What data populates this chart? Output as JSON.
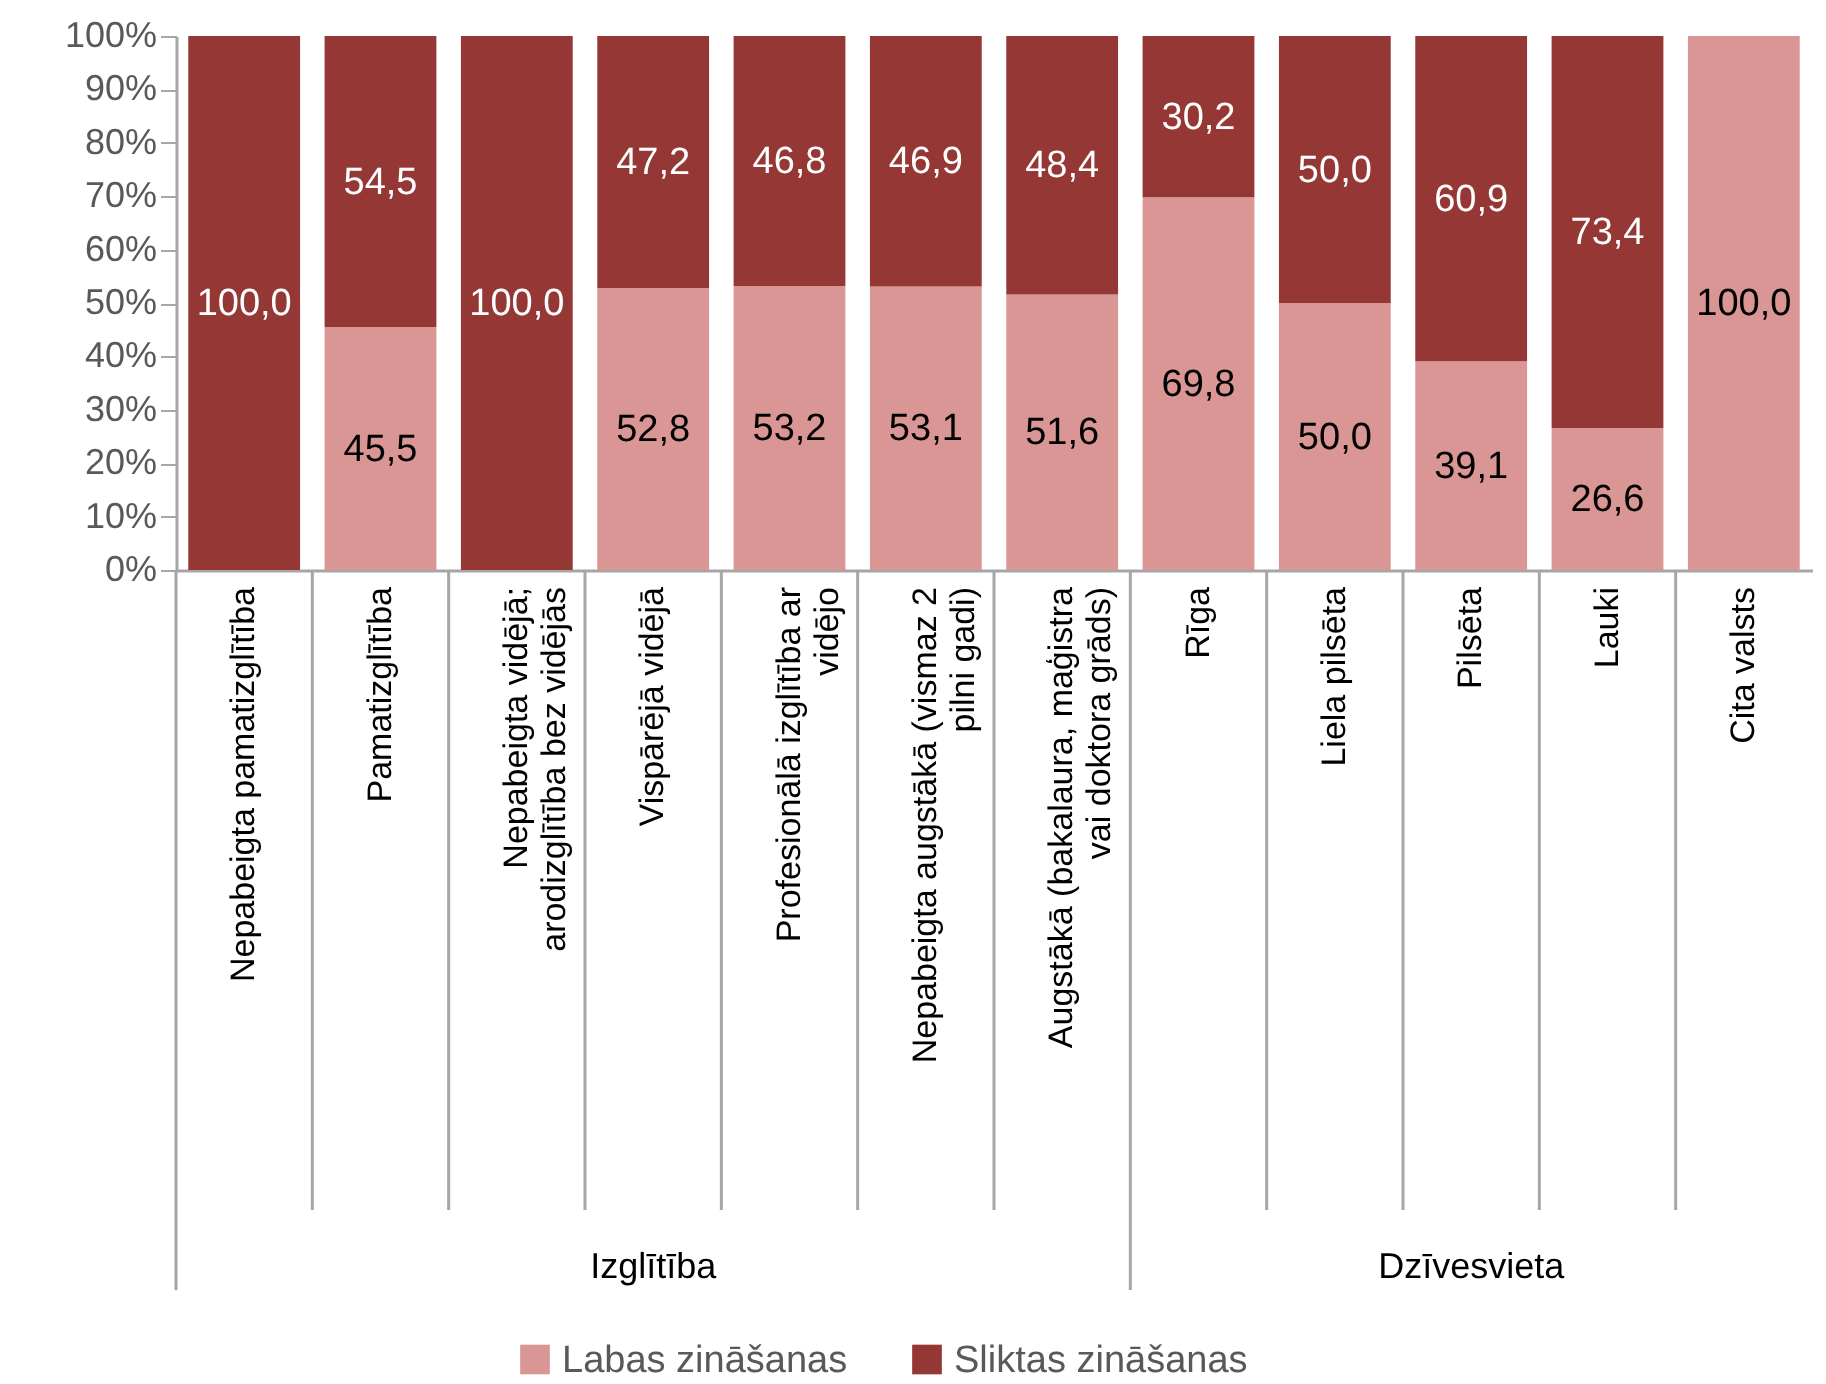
{
  "chart_data": {
    "type": "bar",
    "stacked": true,
    "categories": [
      "Nepabeigta pamatizglītība",
      "Pamatizglītība",
      "Nepabeigta vidējā; arodizglītība bez vidējās",
      "Vispārējā vidējā",
      "Profesionālā izglītība ar vidējo",
      "Nepabeigta augstākā (vismaz 2 pilni gadi)",
      "Augstākā (bakalaura, maģistra vai doktora grāds)",
      "Rīga",
      "Liela pilsēta",
      "Pilsēta",
      "Lauki",
      "Cita valsts"
    ],
    "series": [
      {
        "name": "Labas zināšanas",
        "color": "#d99694",
        "values": [
          0,
          45.5,
          0,
          52.8,
          53.2,
          53.1,
          51.6,
          69.8,
          50.0,
          39.1,
          26.6,
          100.0
        ],
        "value_labels": [
          null,
          "45,5",
          null,
          "52,8",
          "53,2",
          "53,1",
          "51,6",
          "69,8",
          "50,0",
          "39,1",
          "26,6",
          "100,0"
        ]
      },
      {
        "name": "Sliktas zināšanas",
        "color": "#953735",
        "values": [
          100.0,
          54.5,
          100.0,
          47.2,
          46.8,
          46.9,
          48.4,
          30.2,
          50.0,
          60.9,
          73.4,
          0
        ],
        "value_labels": [
          "100,0",
          "54,5",
          "100,0",
          "47,2",
          "46,8",
          "46,9",
          "48,4",
          "30,2",
          "50,0",
          "60,9",
          "73,4",
          null
        ]
      }
    ],
    "ylim": [
      0,
      100
    ],
    "yticks": [
      {
        "value": 0,
        "label": "0%"
      },
      {
        "value": 10,
        "label": "10%"
      },
      {
        "value": 20,
        "label": "20%"
      },
      {
        "value": 30,
        "label": "30%"
      },
      {
        "value": 40,
        "label": "40%"
      },
      {
        "value": 50,
        "label": "50%"
      },
      {
        "value": 60,
        "label": "60%"
      },
      {
        "value": 70,
        "label": "70%"
      },
      {
        "value": 80,
        "label": "80%"
      },
      {
        "value": 90,
        "label": "90%"
      },
      {
        "value": 100,
        "label": "100%"
      }
    ],
    "annotations": [
      "Izglītība",
      "Dzīvesvieta"
    ],
    "grid": false,
    "legend": "bottom"
  }
}
